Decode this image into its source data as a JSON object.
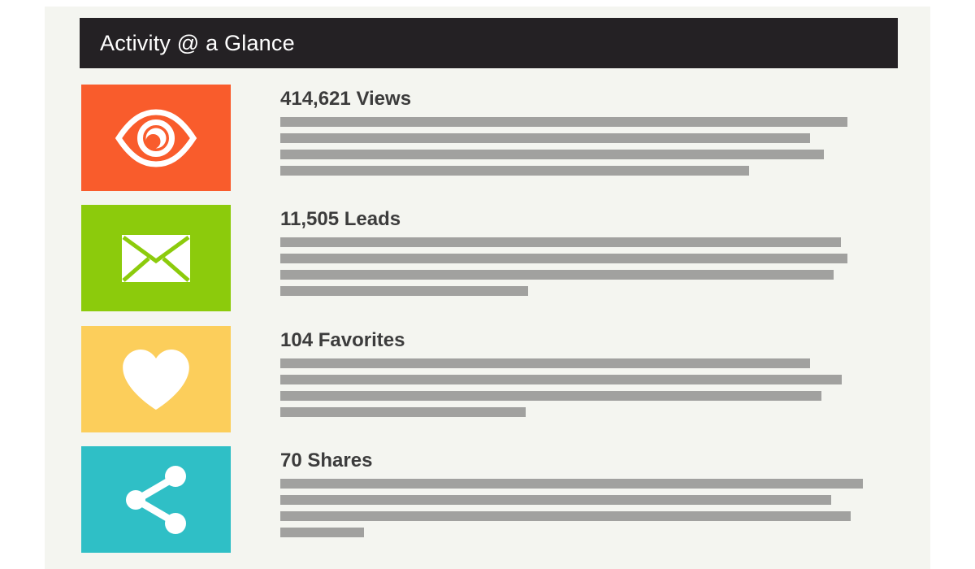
{
  "panel": {
    "title": "Activity @ a Glance",
    "header_bg": "#242124",
    "bg": "#F4F5F0",
    "page_bg": "#FFFFFF"
  },
  "theme": {
    "bar_color": "#A1A19F",
    "heading_color": "#3C3C3C",
    "title_color": "#FFFFFF"
  },
  "stats": [
    {
      "icon": "eye-icon",
      "tile_color": "#F95C2C",
      "value": "414,621",
      "label": "Views",
      "bars": [
        698,
        652,
        669,
        577
      ]
    },
    {
      "icon": "envelope-icon",
      "tile_color": "#8CCB0C",
      "value": "11,505",
      "label": "Leads",
      "bars": [
        690,
        698,
        681,
        305
      ]
    },
    {
      "icon": "heart-icon",
      "tile_color": "#FCCE5B",
      "value": "104",
      "label": "Favorites",
      "bars": [
        652,
        691,
        666,
        302
      ]
    },
    {
      "icon": "share-icon",
      "tile_color": "#2FBFC6",
      "value": "70",
      "label": "Shares",
      "bars": [
        717,
        678,
        702,
        103
      ]
    }
  ]
}
